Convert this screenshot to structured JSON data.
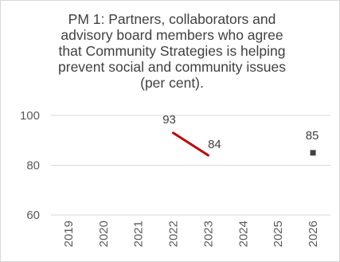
{
  "chart_data": {
    "type": "line",
    "title_lines": [
      "PM 1: Partners, collaborators and",
      "advisory board members who agree",
      "that Community Strategies is helping",
      "prevent social and community issues",
      "(per cent)."
    ],
    "categories": [
      "2019",
      "2020",
      "2021",
      "2022",
      "2023",
      "2024",
      "2025",
      "2026"
    ],
    "yticks": [
      "100",
      "80",
      "60"
    ],
    "ylim": [
      60,
      100
    ],
    "grid": true,
    "legend": "none",
    "series": [
      {
        "type": "line",
        "color": "#c00000",
        "points": [
          {
            "x": "2022",
            "y": 93,
            "label": "93"
          },
          {
            "x": "2023",
            "y": 84,
            "label": "84"
          }
        ]
      },
      {
        "type": "marker",
        "color": "#404040",
        "points": [
          {
            "x": "2026",
            "y": 85,
            "label": "85"
          }
        ]
      }
    ]
  }
}
